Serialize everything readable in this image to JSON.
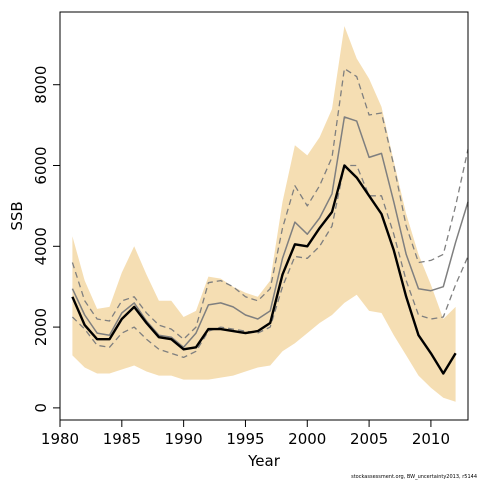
{
  "chart_data": {
    "type": "line",
    "title": "",
    "xlabel": "Year",
    "ylabel": "SSB",
    "xlim": [
      1980,
      2013
    ],
    "ylim": [
      -300,
      9800
    ],
    "xticks": [
      1980,
      1985,
      1990,
      1995,
      2000,
      2005,
      2010
    ],
    "yticks": [
      0,
      2000,
      4000,
      6000,
      8000
    ],
    "credit": "stockassessment.org, BW_uncertainty2013, r5144",
    "band": {
      "color": "#f5deb3",
      "x": [
        1981,
        1982,
        1983,
        1984,
        1985,
        1986,
        1987,
        1988,
        1989,
        1990,
        1991,
        1992,
        1993,
        1994,
        1995,
        1996,
        1997,
        1998,
        1999,
        2000,
        2001,
        2002,
        2003,
        2004,
        2005,
        2006,
        2007,
        2008,
        2009,
        2010,
        2011,
        2012
      ],
      "upper": [
        4250,
        3150,
        2450,
        2500,
        3350,
        4000,
        3300,
        2650,
        2650,
        2250,
        2400,
        3250,
        3200,
        3000,
        2850,
        2750,
        3150,
        5100,
        6500,
        6250,
        6700,
        7400,
        9450,
        8650,
        8150,
        7450,
        6100,
        4800,
        3800,
        3050,
        2200,
        2500
      ],
      "lower": [
        1300,
        1000,
        850,
        850,
        950,
        1050,
        900,
        800,
        800,
        700,
        700,
        700,
        750,
        800,
        900,
        1000,
        1050,
        1400,
        1600,
        1850,
        2100,
        2300,
        2600,
        2800,
        2400,
        2350,
        1800,
        1300,
        800,
        500,
        250,
        150
      ]
    },
    "series": [
      {
        "style": "grey-solid",
        "x": [
          1981,
          1982,
          1983,
          1984,
          1985,
          1986,
          1987,
          1988,
          1989,
          1990,
          1991,
          1992,
          1993,
          1994,
          1995,
          1996,
          1997,
          1998,
          1999,
          2000,
          2001,
          2002,
          2003,
          2004,
          2005,
          2006,
          2007,
          2008,
          2009,
          2010,
          2011,
          2012,
          2013
        ],
        "values": [
          2950,
          2300,
          1850,
          1800,
          2350,
          2600,
          2150,
          1800,
          1750,
          1500,
          1850,
          2550,
          2600,
          2500,
          2300,
          2200,
          2400,
          3700,
          4600,
          4300,
          4700,
          5300,
          7200,
          7100,
          6200,
          6300,
          5100,
          3800,
          2950,
          2900,
          3000,
          4100,
          5100
        ]
      },
      {
        "style": "grey-dashed",
        "x": [
          1981,
          1982,
          1983,
          1984,
          1985,
          1986,
          1987,
          1988,
          1989,
          1990,
          1991,
          1992,
          1993,
          1994,
          1995,
          1996,
          1997,
          1998,
          1999,
          2000,
          2001,
          2002,
          2003,
          2004,
          2005,
          2006,
          2007,
          2008,
          2009,
          2010,
          2011,
          2012,
          2013
        ],
        "values": [
          3600,
          2650,
          2200,
          2150,
          2650,
          2750,
          2350,
          2050,
          1950,
          1700,
          2000,
          3100,
          3150,
          3000,
          2750,
          2650,
          2950,
          4450,
          5500,
          5000,
          5500,
          6200,
          8400,
          8200,
          7250,
          7300,
          6000,
          4500,
          3600,
          3650,
          3800,
          5000,
          6400
        ]
      },
      {
        "style": "grey-dashed",
        "x": [
          1981,
          1982,
          1983,
          1984,
          1985,
          1986,
          1987,
          1988,
          1989,
          1990,
          1991,
          1992,
          1993,
          1994,
          1995,
          1996,
          1997,
          1998,
          1999,
          2000,
          2001,
          2002,
          2003,
          2004,
          2005,
          2006,
          2007,
          2008,
          2009,
          2010,
          2011,
          2012,
          2013
        ],
        "values": [
          2250,
          1950,
          1550,
          1500,
          1850,
          2000,
          1700,
          1450,
          1350,
          1250,
          1400,
          1900,
          2000,
          1950,
          1900,
          1850,
          2000,
          3000,
          3750,
          3700,
          4000,
          4500,
          6000,
          6000,
          5250,
          5250,
          4300,
          3150,
          2300,
          2200,
          2250,
          3050,
          3750
        ]
      },
      {
        "style": "black-bold",
        "x": [
          1981,
          1982,
          1983,
          1984,
          1985,
          1986,
          1987,
          1988,
          1989,
          1990,
          1991,
          1992,
          1993,
          1994,
          1995,
          1996,
          1997,
          1998,
          1999,
          2000,
          2001,
          2002,
          2003,
          2004,
          2005,
          2006,
          2007,
          2008,
          2009,
          2010,
          2011,
          2012
        ],
        "values": [
          2750,
          2050,
          1700,
          1700,
          2200,
          2500,
          2100,
          1750,
          1700,
          1450,
          1500,
          1950,
          1950,
          1900,
          1850,
          1900,
          2100,
          3300,
          4050,
          4000,
          4450,
          4850,
          6000,
          5700,
          5250,
          4800,
          3900,
          2750,
          1800,
          1350,
          850,
          1350
        ]
      }
    ]
  }
}
